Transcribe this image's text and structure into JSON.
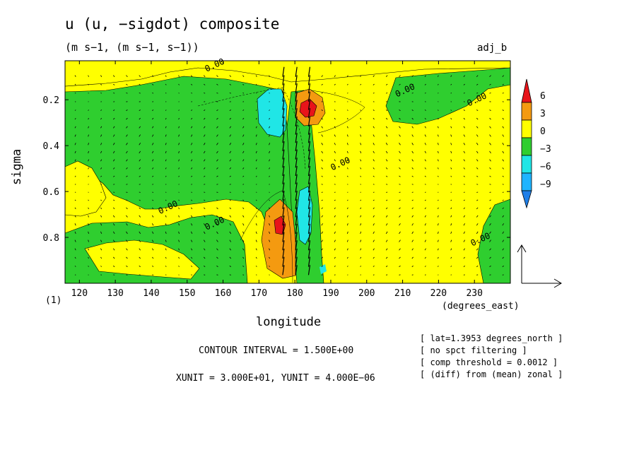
{
  "header": {
    "title": "u (u, −sigdot) composite",
    "subtitle": "(m s−1, (m s−1, s−1))",
    "run_name": "adj_b"
  },
  "axes": {
    "ylabel": "sigma",
    "xlabel": "longitude",
    "y_unit": "(1)",
    "x_unit": "(degrees_east)"
  },
  "notes": {
    "contour_interval": "CONTOUR INTERVAL = 1.500E+00",
    "vector_units": "XUNIT = 3.000E+01, YUNIT = 4.000E−06"
  },
  "info_lines": [
    "[ lat=1.3953 degrees_north ]",
    "[ no spct filtering ]",
    "[ comp threshold = 0.0012 ]",
    "[ (diff) from (mean) zonal ]"
  ],
  "colors": {
    "below_-9": "#1f7fe8",
    "-9_to_-6": "#1fb4ff",
    "-6_to_-3": "#20e6e6",
    "-3_to_0": "#2fce2f",
    "0_to_3": "#ffff00",
    "3_to_6": "#f49a10",
    "above_6": "#e8141a"
  },
  "chart_data": {
    "type": "heatmap",
    "title": "u (u, −sigdot) composite",
    "subtitle": "(m s−1, (m s−1, s−1))",
    "xlabel": "longitude",
    "ylabel": "sigma",
    "x_range": [
      116,
      240
    ],
    "y_range": [
      1.0,
      0.03
    ],
    "y_inverted": true,
    "x_ticks": [
      120,
      130,
      140,
      150,
      160,
      170,
      180,
      190,
      200,
      210,
      220,
      230
    ],
    "y_ticks": [
      0.2,
      0.4,
      0.6,
      0.8
    ],
    "colorbar": {
      "levels": [
        -9,
        -6,
        -3,
        0,
        3,
        6
      ],
      "labels": [
        "6",
        "3",
        "0",
        "−3",
        "−6",
        "−9"
      ]
    },
    "contour_labels": [
      {
        "text": "0.00",
        "lon": 158,
        "sigma": 0.06
      },
      {
        "text": "0.00",
        "lon": 211,
        "sigma": 0.17
      },
      {
        "text": "0.00",
        "lon": 231,
        "sigma": 0.21
      },
      {
        "text": "0.00",
        "lon": 193,
        "sigma": 0.49
      },
      {
        "text": "0.00",
        "lon": 145,
        "sigma": 0.68
      },
      {
        "text": "0.00",
        "lon": 158,
        "sigma": 0.75
      },
      {
        "text": "0.00",
        "lon": 232,
        "sigma": 0.82
      }
    ],
    "extrema": [
      {
        "sign": "negative",
        "lon": 175,
        "sigma": 0.26,
        "peak": -6
      },
      {
        "sign": "positive",
        "lon": 183,
        "sigma": 0.24,
        "peak": 6
      },
      {
        "sign": "positive",
        "lon": 176,
        "sigma": 0.76,
        "peak": 6
      },
      {
        "sign": "negative",
        "lon": 184,
        "sigma": 0.76,
        "peak": -6
      }
    ],
    "reference_vector": {
      "x_unit": 30,
      "y_unit": 4e-06
    }
  }
}
